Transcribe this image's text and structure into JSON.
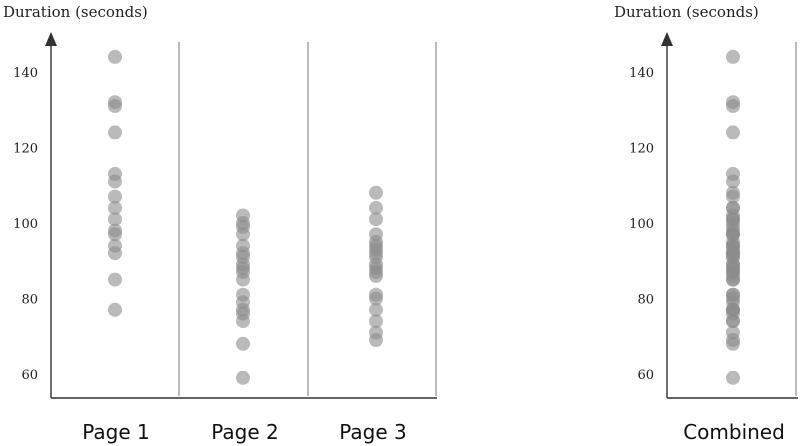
{
  "chart_data": [
    {
      "type": "scatter",
      "title": "",
      "ylabel": "Duration (seconds)",
      "xlabel": "",
      "ylim": [
        55,
        150
      ],
      "yticks": [
        60,
        80,
        100,
        120,
        140
      ],
      "categories": [
        "Page 1",
        "Page 2",
        "Page 3"
      ],
      "series": [
        {
          "category": "Page 1",
          "values": [
            144,
            132,
            131,
            124,
            113,
            111,
            107,
            104,
            101,
            98,
            97,
            94,
            92,
            85,
            77
          ]
        },
        {
          "category": "Page 2",
          "values": [
            102,
            100,
            99,
            97,
            94,
            92,
            91,
            89,
            88,
            87,
            85,
            81,
            79,
            77,
            76,
            74,
            68,
            59
          ]
        },
        {
          "category": "Page 3",
          "values": [
            108,
            104,
            101,
            97,
            95,
            94,
            93,
            92,
            91,
            89,
            88,
            87,
            86,
            81,
            80,
            77,
            74,
            71,
            69
          ]
        }
      ],
      "colors": {
        "dot": "#8c8c8c",
        "axis": "#333333"
      }
    },
    {
      "type": "scatter",
      "title": "",
      "ylabel": "Duration (seconds)",
      "xlabel": "",
      "ylim": [
        55,
        150
      ],
      "yticks": [
        60,
        80,
        100,
        120,
        140
      ],
      "categories": [
        "Combined"
      ],
      "series": [
        {
          "category": "Combined",
          "values": [
            144,
            132,
            131,
            124,
            113,
            111,
            107,
            104,
            101,
            98,
            97,
            94,
            92,
            85,
            77,
            102,
            100,
            99,
            97,
            94,
            92,
            91,
            89,
            88,
            87,
            85,
            81,
            79,
            77,
            76,
            74,
            68,
            59,
            108,
            104,
            101,
            97,
            95,
            94,
            93,
            92,
            91,
            89,
            88,
            87,
            86,
            81,
            80,
            77,
            74,
            71,
            69
          ]
        }
      ],
      "colors": {
        "dot": "#8c8c8c",
        "axis": "#333333"
      }
    }
  ]
}
